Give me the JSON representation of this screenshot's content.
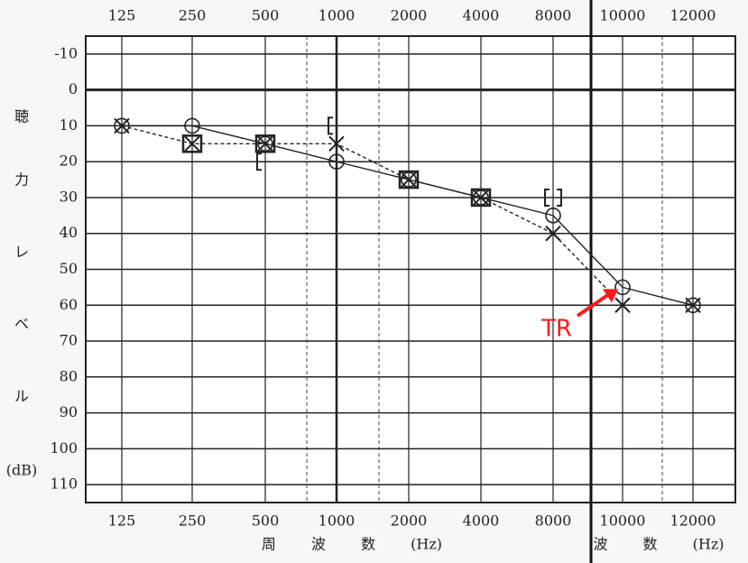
{
  "chart_data": {
    "type": "line",
    "categories": [
      "125",
      "250",
      "500",
      "1000",
      "2000",
      "4000",
      "8000",
      "10000",
      "12000"
    ],
    "ylim": [
      -15,
      115
    ],
    "y_inverted": true,
    "yticks": [
      -10,
      0,
      10,
      20,
      30,
      40,
      50,
      60,
      70,
      80,
      90,
      100,
      110
    ],
    "grid": true,
    "y_label": [
      "聴",
      "力",
      "レ",
      "ベ",
      "ル",
      "(dB)"
    ],
    "x_label": "周 波 数 (Hz)",
    "x_label_extended": "波 数 (Hz)",
    "series": [
      {
        "marker": "circle",
        "line": "solid",
        "color": "#222222",
        "values": [
          10,
          10,
          15,
          20,
          25,
          30,
          35,
          55,
          60
        ]
      },
      {
        "marker": "cross",
        "line": "dashed",
        "color": "#222222",
        "values": [
          10,
          15,
          15,
          15,
          25,
          30,
          40,
          60,
          60
        ]
      },
      {
        "marker": "square",
        "line": "none",
        "color": "#222222",
        "values": [
          null,
          15,
          15,
          null,
          25,
          30,
          null,
          null,
          null
        ]
      },
      {
        "marker": "bracket-left",
        "line": "none",
        "color": "#222222",
        "values": [
          null,
          null,
          20,
          10,
          null,
          null,
          30,
          null,
          null
        ]
      },
      {
        "marker": "bracket-right",
        "line": "none",
        "color": "#222222",
        "values": [
          null,
          null,
          null,
          null,
          null,
          null,
          30,
          null,
          null
        ]
      }
    ],
    "annotations": [
      {
        "text": "TR",
        "color": "#ff1a1a",
        "category": 7,
        "value": 55
      }
    ]
  }
}
